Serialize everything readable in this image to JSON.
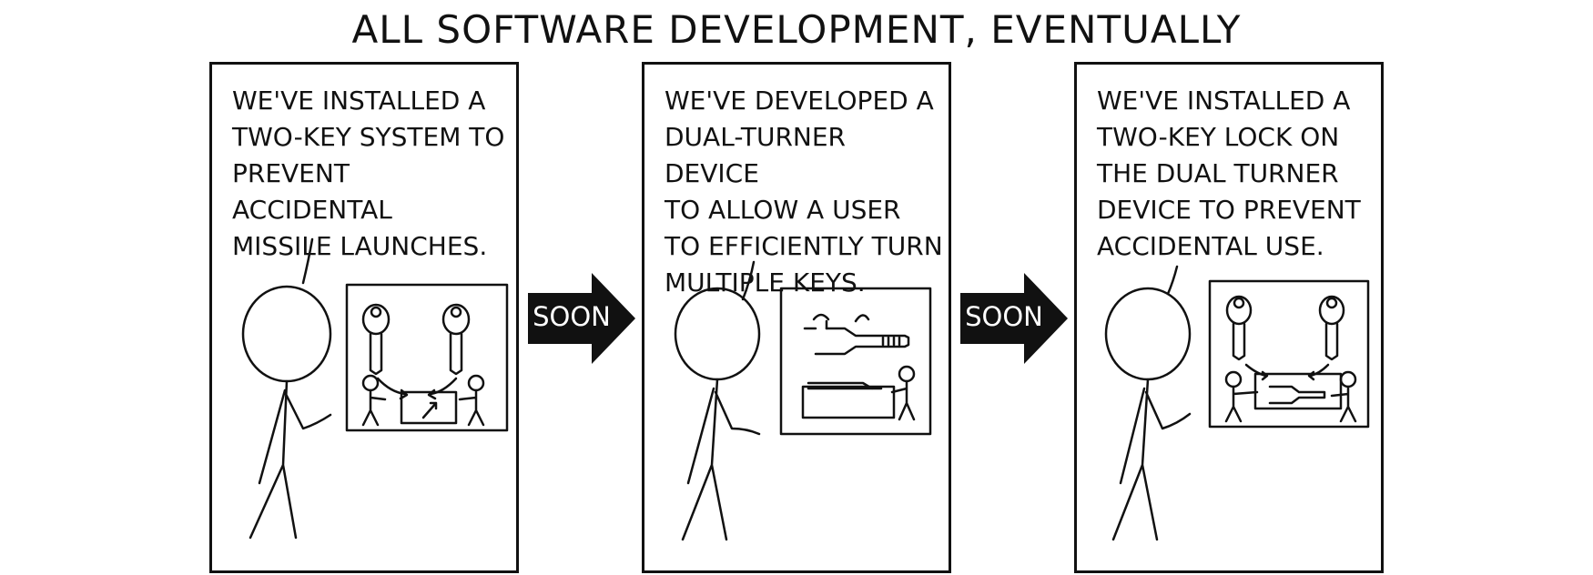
{
  "comic": {
    "title": "ALL SOFTWARE DEVELOPMENT, EVENTUALLY",
    "transition_label": "SOON",
    "panels": [
      {
        "text": "WE'VE INSTALLED A\nTWO-KEY SYSTEM TO\nPREVENT ACCIDENTAL\nMISSILE LAUNCHES."
      },
      {
        "text": "WE'VE DEVELOPED A\nDUAL-TURNER DEVICE\nTO ALLOW A USER\nTO EFFICIENTLY TURN\nMULTIPLE KEYS."
      },
      {
        "text": "WE'VE INSTALLED A\nTWO-KEY LOCK ON\nTHE DUAL TURNER\nDEVICE TO PREVENT\nACCIDENTAL USE."
      }
    ]
  }
}
